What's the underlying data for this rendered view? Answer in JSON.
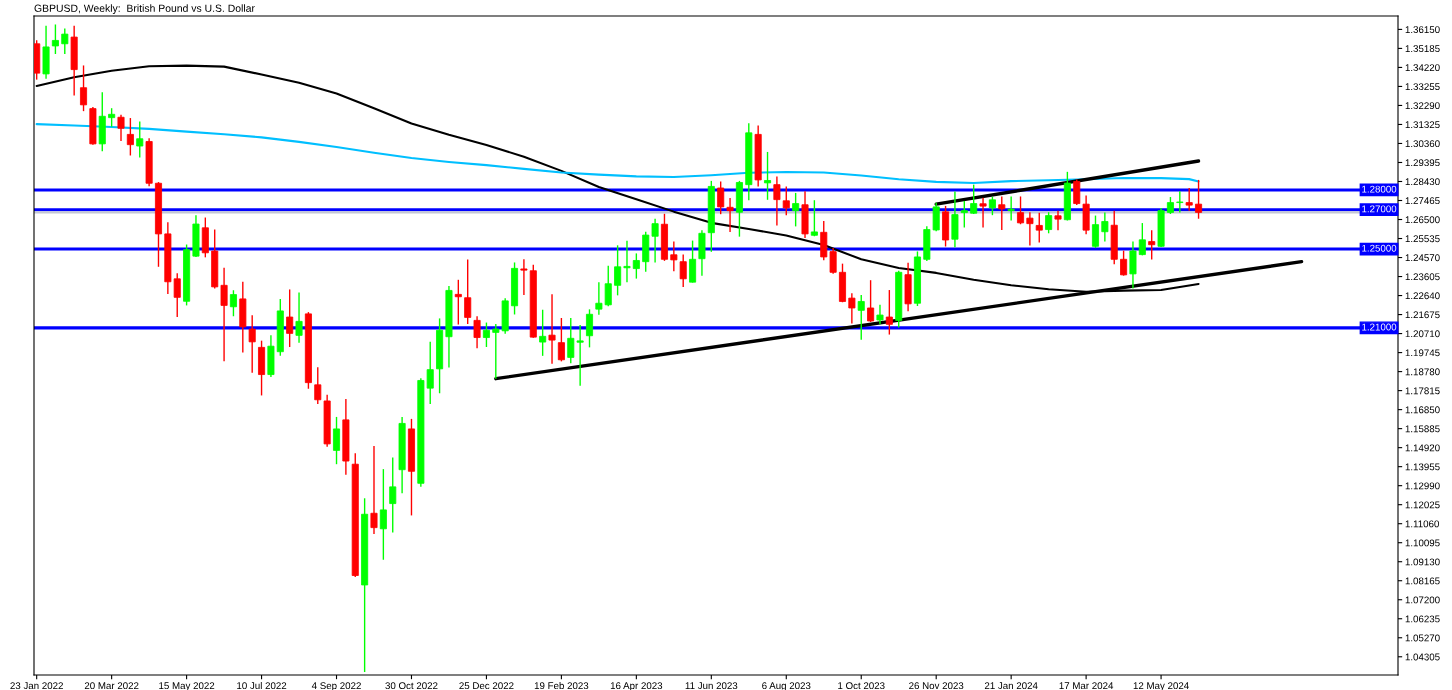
{
  "chart_data": {
    "type": "candlestick",
    "title": "GBPUSD, Weekly:  British Pound vs U.S. Dollar",
    "series": [
      {
        "x": [
          "2022-01-23",
          "2022-01-30",
          "2022-02-06",
          "2022-02-13",
          "2022-02-20",
          "2022-02-27",
          "2022-03-06",
          "2022-03-13",
          "2022-03-20",
          "2022-03-27",
          "2022-04-03",
          "2022-04-10",
          "2022-04-17",
          "2022-04-24",
          "2022-05-01",
          "2022-05-08",
          "2022-05-15",
          "2022-05-22",
          "2022-05-29",
          "2022-06-05",
          "2022-06-12",
          "2022-06-19",
          "2022-06-26",
          "2022-07-03",
          "2022-07-10",
          "2022-07-17",
          "2022-07-24",
          "2022-07-31",
          "2022-08-07",
          "2022-08-14",
          "2022-08-21",
          "2022-08-28",
          "2022-09-04",
          "2022-09-11",
          "2022-09-18",
          "2022-09-25",
          "2022-10-02",
          "2022-10-09",
          "2022-10-16",
          "2022-10-23",
          "2022-10-30",
          "2022-11-06",
          "2022-11-13",
          "2022-11-20",
          "2022-11-27",
          "2022-12-04",
          "2022-12-11",
          "2022-12-18",
          "2022-12-25",
          "2023-01-01",
          "2023-01-08",
          "2023-01-15",
          "2023-01-22",
          "2023-01-29",
          "2023-02-05",
          "2023-02-12",
          "2023-02-19",
          "2023-02-26",
          "2023-03-05",
          "2023-03-12",
          "2023-03-19",
          "2023-03-26",
          "2023-04-02",
          "2023-04-09",
          "2023-04-16",
          "2023-04-23",
          "2023-04-30",
          "2023-05-07",
          "2023-05-14",
          "2023-05-21",
          "2023-05-28",
          "2023-06-04",
          "2023-06-11",
          "2023-06-18",
          "2023-06-25",
          "2023-07-02",
          "2023-07-09",
          "2023-07-16",
          "2023-07-23",
          "2023-07-30",
          "2023-08-06",
          "2023-08-13",
          "2023-08-20",
          "2023-08-27",
          "2023-09-03",
          "2023-09-10",
          "2023-09-17",
          "2023-09-24",
          "2023-10-01",
          "2023-10-08",
          "2023-10-15",
          "2023-10-22",
          "2023-10-29",
          "2023-11-05",
          "2023-11-12",
          "2023-11-19",
          "2023-11-26",
          "2023-12-03",
          "2023-12-10",
          "2023-12-17",
          "2023-12-24",
          "2023-12-31",
          "2024-01-07",
          "2024-01-14",
          "2024-01-21",
          "2024-01-28",
          "2024-02-04",
          "2024-02-11",
          "2024-02-18",
          "2024-02-25",
          "2024-03-03",
          "2024-03-10",
          "2024-03-17",
          "2024-03-24",
          "2024-03-31",
          "2024-04-07",
          "2024-04-14",
          "2024-04-21",
          "2024-04-28",
          "2024-05-05",
          "2024-05-12",
          "2024-05-19",
          "2024-05-26",
          "2024-06-02",
          "2024-06-09"
        ],
        "ohlc": [
          [
            1.3542,
            1.356,
            1.336,
            1.3393
          ],
          [
            1.3389,
            1.3634,
            1.3365,
            1.3526
          ],
          [
            1.3531,
            1.364,
            1.349,
            1.3559
          ],
          [
            1.3542,
            1.362,
            1.349,
            1.3591
          ],
          [
            1.3576,
            1.3634,
            1.3279,
            1.3411
          ],
          [
            1.3319,
            1.3432,
            1.32,
            1.3232
          ],
          [
            1.3213,
            1.3221,
            1.303,
            1.3034
          ],
          [
            1.3034,
            1.3296,
            1.2997,
            1.3174
          ],
          [
            1.3167,
            1.3215,
            1.3121,
            1.3184
          ],
          [
            1.3169,
            1.3182,
            1.3048,
            1.3113
          ],
          [
            1.3082,
            1.3165,
            1.2975,
            1.303
          ],
          [
            1.3023,
            1.3147,
            1.2965,
            1.306
          ],
          [
            1.3046,
            1.3062,
            1.2819,
            1.2834
          ],
          [
            1.2834,
            1.284,
            1.241,
            1.2577
          ],
          [
            1.2577,
            1.2636,
            1.2272,
            1.2334
          ],
          [
            1.2349,
            1.2377,
            1.2155,
            1.2255
          ],
          [
            1.2235,
            1.2523,
            1.2214,
            1.2497
          ],
          [
            1.2464,
            1.2671,
            1.246,
            1.2627
          ],
          [
            1.2608,
            1.266,
            1.2458,
            1.2481
          ],
          [
            1.249,
            1.2599,
            1.23,
            1.2308
          ],
          [
            1.2316,
            1.2405,
            1.1931,
            1.2214
          ],
          [
            1.2207,
            1.2291,
            1.2159,
            1.2269
          ],
          [
            1.2247,
            1.2334,
            1.1975,
            1.2105
          ],
          [
            1.2094,
            1.2164,
            1.1872,
            1.2029
          ],
          [
            1.2001,
            1.2035,
            1.1757,
            1.1863
          ],
          [
            1.1863,
            1.2062,
            1.185,
            1.2007
          ],
          [
            1.1979,
            1.2247,
            1.1959,
            1.2186
          ],
          [
            1.2155,
            1.2295,
            1.2003,
            1.2072
          ],
          [
            1.2062,
            1.228,
            1.2024,
            1.2133
          ],
          [
            1.2171,
            1.218,
            1.1791,
            1.1822
          ],
          [
            1.1811,
            1.19,
            1.1713,
            1.1735
          ],
          [
            1.1729,
            1.1761,
            1.1496,
            1.1511
          ],
          [
            1.1478,
            1.1648,
            1.1408,
            1.1587
          ],
          [
            1.1633,
            1.1739,
            1.1354,
            1.1424
          ],
          [
            1.1408,
            1.1463,
            1.0836,
            1.0843
          ],
          [
            1.0795,
            1.1235,
            1.0353,
            1.1154
          ],
          [
            1.1159,
            1.15,
            1.1054,
            1.1086
          ],
          [
            1.108,
            1.1383,
            1.0923,
            1.1176
          ],
          [
            1.1208,
            1.1442,
            1.1061,
            1.1293
          ],
          [
            1.138,
            1.1648,
            1.1261,
            1.1615
          ],
          [
            1.1587,
            1.1638,
            1.1148,
            1.1372
          ],
          [
            1.1311,
            1.1844,
            1.1293,
            1.1833
          ],
          [
            1.1794,
            1.2029,
            1.1713,
            1.1888
          ],
          [
            1.1892,
            1.2148,
            1.1768,
            1.2088
          ],
          [
            1.2055,
            1.2312,
            1.1899,
            1.229
          ],
          [
            1.227,
            1.2344,
            1.2117,
            1.2258
          ],
          [
            1.2253,
            1.2447,
            1.212,
            1.2153
          ],
          [
            1.2138,
            1.2159,
            1.1996,
            1.2051
          ],
          [
            1.2051,
            1.2127,
            1.2003,
            1.2088
          ],
          [
            1.2077,
            1.2119,
            1.1842,
            1.2094
          ],
          [
            1.2085,
            1.225,
            1.207,
            1.2237
          ],
          [
            1.2212,
            1.2432,
            1.2168,
            1.2402
          ],
          [
            1.2399,
            1.2448,
            1.2267,
            1.2393
          ],
          [
            1.239,
            1.242,
            1.205,
            1.2053
          ],
          [
            1.2028,
            1.2192,
            1.1958,
            1.2057
          ],
          [
            1.2063,
            1.2271,
            1.1918,
            1.2038
          ],
          [
            1.2025,
            1.215,
            1.193,
            1.1938
          ],
          [
            1.195,
            1.215,
            1.192,
            1.2047
          ],
          [
            1.2027,
            1.2115,
            1.1806,
            1.2034
          ],
          [
            1.206,
            1.2194,
            1.2001,
            1.2169
          ],
          [
            1.2195,
            1.2332,
            1.2167,
            1.2225
          ],
          [
            1.2217,
            1.2415,
            1.221,
            1.2324
          ],
          [
            1.2316,
            1.2519,
            1.2265,
            1.241
          ],
          [
            1.2405,
            1.2542,
            1.2332,
            1.2412
          ],
          [
            1.2401,
            1.2478,
            1.235,
            1.2442
          ],
          [
            1.2436,
            1.2588,
            1.2385,
            1.2571
          ],
          [
            1.2565,
            1.2654,
            1.2432,
            1.2629
          ],
          [
            1.2626,
            1.2679,
            1.244,
            1.2448
          ],
          [
            1.2471,
            1.2539,
            1.2387,
            1.2445
          ],
          [
            1.2436,
            1.2473,
            1.2308,
            1.2349
          ],
          [
            1.2332,
            1.2543,
            1.233,
            1.2448
          ],
          [
            1.2451,
            1.2596,
            1.2365,
            1.258
          ],
          [
            1.2583,
            1.2846,
            1.2486,
            1.2818
          ],
          [
            1.281,
            1.2843,
            1.2677,
            1.2714
          ],
          [
            1.2712,
            1.2759,
            1.2586,
            1.2695
          ],
          [
            1.2687,
            1.2846,
            1.2563,
            1.2838
          ],
          [
            1.2827,
            1.3139,
            1.2748,
            1.309
          ],
          [
            1.3082,
            1.3127,
            1.2818,
            1.2851
          ],
          [
            1.2836,
            1.2993,
            1.275,
            1.2848
          ],
          [
            1.2827,
            1.2868,
            1.262,
            1.2751
          ],
          [
            1.2745,
            1.2818,
            1.2672,
            1.2709
          ],
          [
            1.2695,
            1.2785,
            1.2615,
            1.2731
          ],
          [
            1.2725,
            1.2794,
            1.2556,
            1.2577
          ],
          [
            1.257,
            1.2748,
            1.2565,
            1.2587
          ],
          [
            1.2585,
            1.2642,
            1.2443,
            1.246
          ],
          [
            1.2487,
            1.2505,
            1.2375,
            1.2382
          ],
          [
            1.2382,
            1.2426,
            1.223,
            1.2234
          ],
          [
            1.2251,
            1.2276,
            1.2122,
            1.2201
          ],
          [
            1.2189,
            1.2267,
            1.204,
            1.2234
          ],
          [
            1.2201,
            1.2342,
            1.213,
            1.2135
          ],
          [
            1.214,
            1.2217,
            1.2118,
            1.2165
          ],
          [
            1.2155,
            1.2292,
            1.2066,
            1.2118
          ],
          [
            1.2138,
            1.239,
            1.2102,
            1.2382
          ],
          [
            1.237,
            1.2431,
            1.2184,
            1.2222
          ],
          [
            1.2225,
            1.2488,
            1.2211,
            1.246
          ],
          [
            1.2448,
            1.2616,
            1.244,
            1.2599
          ],
          [
            1.2597,
            1.2735,
            1.259,
            1.2714
          ],
          [
            1.2689,
            1.2719,
            1.2513,
            1.2546
          ],
          [
            1.255,
            1.2792,
            1.2509,
            1.2675
          ],
          [
            1.2685,
            1.2744,
            1.2609,
            1.2695
          ],
          [
            1.2682,
            1.2827,
            1.2678,
            1.2731
          ],
          [
            1.273,
            1.276,
            1.2609,
            1.2718
          ],
          [
            1.2709,
            1.2765,
            1.2672,
            1.275
          ],
          [
            1.2725,
            1.2767,
            1.2597,
            1.2704
          ],
          [
            1.2695,
            1.2767,
            1.2645,
            1.2702
          ],
          [
            1.2685,
            1.2767,
            1.2626,
            1.2633
          ],
          [
            1.2657,
            1.2687,
            1.2518,
            1.2629
          ],
          [
            1.262,
            1.2684,
            1.2533,
            1.2596
          ],
          [
            1.2599,
            1.2687,
            1.258,
            1.267
          ],
          [
            1.2669,
            1.2695,
            1.2596,
            1.2652
          ],
          [
            1.2649,
            1.2892,
            1.2645,
            1.2835
          ],
          [
            1.2843,
            1.2853,
            1.2724,
            1.2731
          ],
          [
            1.2728,
            1.2772,
            1.2575,
            1.2596
          ],
          [
            1.2514,
            1.267,
            1.2506,
            1.2624
          ],
          [
            1.2588,
            1.2686,
            1.2538,
            1.264
          ],
          [
            1.2621,
            1.2695,
            1.2423,
            1.2448
          ],
          [
            1.2448,
            1.2492,
            1.2365,
            1.2369
          ],
          [
            1.2374,
            1.2538,
            1.23,
            1.249
          ],
          [
            1.2472,
            1.2632,
            1.2468,
            1.2547
          ],
          [
            1.2538,
            1.2596,
            1.2447,
            1.2522
          ],
          [
            1.2514,
            1.2708,
            1.251,
            1.2695
          ],
          [
            1.2686,
            1.2764,
            1.2678,
            1.2736
          ],
          [
            1.2736,
            1.2794,
            1.2686,
            1.2739
          ],
          [
            1.2736,
            1.281,
            1.2695,
            1.2723
          ],
          [
            1.2728,
            1.2851,
            1.2654,
            1.2686
          ]
        ],
        "colors": [
          "#ff0000",
          "#00ff00",
          "#00ff00",
          "#00ff00",
          "#ff0000",
          "#ff0000",
          "#ff0000",
          "#00ff00",
          "#00ff00",
          "#ff0000",
          "#ff0000",
          "#00ff00",
          "#ff0000",
          "#ff0000",
          "#ff0000",
          "#ff0000",
          "#00ff00",
          "#00ff00",
          "#ff0000",
          "#ff0000",
          "#ff0000",
          "#00ff00",
          "#ff0000",
          "#ff0000",
          "#ff0000",
          "#00ff00",
          "#00ff00",
          "#ff0000",
          "#00ff00",
          "#ff0000",
          "#ff0000",
          "#ff0000",
          "#00ff00",
          "#ff0000",
          "#ff0000",
          "#00ff00",
          "#ff0000",
          "#00ff00",
          "#00ff00",
          "#00ff00",
          "#ff0000",
          "#00ff00",
          "#00ff00",
          "#00ff00",
          "#00ff00",
          "#ff0000",
          "#ff0000",
          "#ff0000",
          "#00ff00",
          "#00ff00",
          "#00ff00",
          "#00ff00",
          "#ff0000",
          "#ff0000",
          "#00ff00",
          "#ff0000",
          "#ff0000",
          "#00ff00",
          "#00ff00",
          "#00ff00",
          "#00ff00",
          "#00ff00",
          "#00ff00",
          "#00ff00",
          "#00ff00",
          "#00ff00",
          "#00ff00",
          "#ff0000",
          "#ff0000",
          "#ff0000",
          "#00ff00",
          "#00ff00",
          "#00ff00",
          "#ff0000",
          "#ff0000",
          "#00ff00",
          "#00ff00",
          "#ff0000",
          "#00ff00",
          "#ff0000",
          "#ff0000",
          "#00ff00",
          "#ff0000",
          "#00ff00",
          "#ff0000",
          "#ff0000",
          "#ff0000",
          "#ff0000",
          "#00ff00",
          "#ff0000",
          "#00ff00",
          "#ff0000",
          "#00ff00",
          "#ff0000",
          "#00ff00",
          "#00ff00",
          "#00ff00",
          "#ff0000",
          "#00ff00",
          "#00ff00",
          "#00ff00",
          "#ff0000",
          "#00ff00",
          "#ff0000",
          "#00ff00",
          "#ff0000",
          "#ff0000",
          "#ff0000",
          "#00ff00",
          "#ff0000",
          "#00ff00",
          "#ff0000",
          "#ff0000",
          "#00ff00",
          "#00ff00",
          "#ff0000",
          "#ff0000",
          "#00ff00",
          "#00ff00",
          "#ff0000",
          "#00ff00",
          "#00ff00",
          "#00ff00",
          "#ff0000",
          "#ff0000"
        ]
      },
      {
        "type": "line",
        "color": "#000000",
        "x": [
          "2022-01-23",
          "2022-02-20",
          "2022-03-20",
          "2022-04-17",
          "2022-05-15",
          "2022-06-12",
          "2022-07-10",
          "2022-08-07",
          "2022-09-04",
          "2022-10-02",
          "2022-10-30",
          "2022-11-27",
          "2022-12-25",
          "2023-01-22",
          "2023-02-19",
          "2023-03-19",
          "2023-04-16",
          "2023-05-14",
          "2023-06-11",
          "2023-07-09",
          "2023-08-06",
          "2023-09-03",
          "2023-10-01",
          "2023-10-29",
          "2023-11-26",
          "2023-12-24",
          "2024-01-21",
          "2024-02-18",
          "2024-03-17",
          "2024-04-14",
          "2024-05-12",
          "2024-06-09"
        ],
        "values": [
          1.3328,
          1.3372,
          1.3405,
          1.3428,
          1.3431,
          1.3426,
          1.3386,
          1.3344,
          1.329,
          1.3215,
          1.3137,
          1.308,
          1.3028,
          1.2969,
          1.2897,
          1.2815,
          1.2753,
          1.269,
          1.2633,
          1.2602,
          1.2569,
          1.2521,
          1.2448,
          1.2404,
          1.2379,
          1.2344,
          1.2316,
          1.2296,
          1.2283,
          1.2289,
          1.2292,
          1.2323
        ]
      },
      {
        "type": "line",
        "color": "#00bfff",
        "x": [
          "2022-01-23",
          "2022-02-20",
          "2022-03-20",
          "2022-04-17",
          "2022-05-15",
          "2022-06-12",
          "2022-07-10",
          "2022-08-07",
          "2022-09-04",
          "2022-10-02",
          "2022-10-30",
          "2022-11-27",
          "2022-12-25",
          "2023-01-22",
          "2023-02-19",
          "2023-03-19",
          "2023-04-16",
          "2023-05-14",
          "2023-06-11",
          "2023-07-09",
          "2023-08-06",
          "2023-09-03",
          "2023-10-01",
          "2023-10-29",
          "2023-11-26",
          "2023-12-24",
          "2024-01-21",
          "2024-02-18",
          "2024-03-17",
          "2024-04-14",
          "2024-05-12",
          "2024-06-02",
          "2024-06-09"
        ],
        "values": [
          1.3134,
          1.3127,
          1.312,
          1.311,
          1.3096,
          1.3083,
          1.3067,
          1.3044,
          1.3018,
          1.2989,
          1.2962,
          1.2942,
          1.2926,
          1.2907,
          1.2889,
          1.2878,
          1.2869,
          1.2866,
          1.2875,
          1.2887,
          1.2891,
          1.2889,
          1.2873,
          1.2854,
          1.2841,
          1.2835,
          1.2845,
          1.2849,
          1.2854,
          1.2861,
          1.286,
          1.2855,
          1.2843
        ]
      },
      {
        "type": "line",
        "color": "#000000",
        "x": [
          "2023-01-01",
          "2024-08-25"
        ],
        "values": [
          1.1842,
          1.2436
        ]
      },
      {
        "type": "line",
        "color": "#000000",
        "x": [
          "2023-11-26",
          "2024-06-09"
        ],
        "values": [
          1.2728,
          1.2947
        ]
      }
    ],
    "xlim": [
      "2022-01-21",
      "2024-11-05"
    ],
    "xticks": [
      {
        "value": "2022-01-23",
        "label": "23 Jan 2022"
      },
      {
        "value": "2022-03-20",
        "label": "20 Mar 2022"
      },
      {
        "value": "2022-05-15",
        "label": "15 May 2022"
      },
      {
        "value": "2022-07-10",
        "label": "10 Jul 2022"
      },
      {
        "value": "2022-09-04",
        "label": "4 Sep 2022"
      },
      {
        "value": "2022-10-30",
        "label": "30 Oct 2022"
      },
      {
        "value": "2022-12-25",
        "label": "25 Dec 2022"
      },
      {
        "value": "2023-02-19",
        "label": "19 Feb 2023"
      },
      {
        "value": "2023-04-16",
        "label": "16 Apr 2023"
      },
      {
        "value": "2023-06-11",
        "label": "11 Jun 2023"
      },
      {
        "value": "2023-08-06",
        "label": "6 Aug 2023"
      },
      {
        "value": "2023-10-01",
        "label": "1 Oct 2023"
      },
      {
        "value": "2023-11-26",
        "label": "26 Nov 2023"
      },
      {
        "value": "2024-01-21",
        "label": "21 Jan 2024"
      },
      {
        "value": "2024-03-17",
        "label": "17 Mar 2024"
      },
      {
        "value": "2024-05-12",
        "label": "12 May 2024"
      }
    ],
    "ylim": [
      1.0338,
      1.3683
    ],
    "yticks": [
      {
        "value": 1.3615,
        "label": "1.36150"
      },
      {
        "value": 1.35185,
        "label": "1.35185"
      },
      {
        "value": 1.3422,
        "label": "1.34220"
      },
      {
        "value": 1.33255,
        "label": "1.33255"
      },
      {
        "value": 1.3229,
        "label": "1.32290"
      },
      {
        "value": 1.31325,
        "label": "1.31325"
      },
      {
        "value": 1.3036,
        "label": "1.30360"
      },
      {
        "value": 1.29395,
        "label": "1.29395"
      },
      {
        "value": 1.2843,
        "label": "1.28430"
      },
      {
        "value": 1.27465,
        "label": "1.27465"
      },
      {
        "value": 1.265,
        "label": "1.26500"
      },
      {
        "value": 1.25535,
        "label": "1.25535"
      },
      {
        "value": 1.2457,
        "label": "1.24570"
      },
      {
        "value": 1.23605,
        "label": "1.23605"
      },
      {
        "value": 1.2264,
        "label": "1.22640"
      },
      {
        "value": 1.21675,
        "label": "1.21675"
      },
      {
        "value": 1.2071,
        "label": "1.20710"
      },
      {
        "value": 1.19745,
        "label": "1.19745"
      },
      {
        "value": 1.1878,
        "label": "1.18780"
      },
      {
        "value": 1.17815,
        "label": "1.17815"
      },
      {
        "value": 1.1685,
        "label": "1.16850"
      },
      {
        "value": 1.15885,
        "label": "1.15885"
      },
      {
        "value": 1.1492,
        "label": "1.14920"
      },
      {
        "value": 1.13955,
        "label": "1.13955"
      },
      {
        "value": 1.1299,
        "label": "1.12990"
      },
      {
        "value": 1.12025,
        "label": "1.12025"
      },
      {
        "value": 1.1106,
        "label": "1.11060"
      },
      {
        "value": 1.10095,
        "label": "1.10095"
      },
      {
        "value": 1.0913,
        "label": "1.09130"
      },
      {
        "value": 1.08165,
        "label": "1.08165"
      },
      {
        "value": 1.072,
        "label": "1.07200"
      },
      {
        "value": 1.06235,
        "label": "1.06235"
      },
      {
        "value": 1.0527,
        "label": "1.05270"
      },
      {
        "value": 1.04305,
        "label": "1.04305"
      }
    ],
    "ref_lines": [
      {
        "axis": "y",
        "value": 1.28,
        "label": "1.28000",
        "color": "#0000ff"
      },
      {
        "axis": "y",
        "value": 1.27,
        "label": "1.27000",
        "color": "#0000ff"
      },
      {
        "axis": "y",
        "value": 1.25,
        "label": "1.25000",
        "color": "#0000ff"
      },
      {
        "axis": "y",
        "value": 1.21,
        "label": "1.21000",
        "color": "#0000ff"
      },
      {
        "axis": "y",
        "value": 1.2686,
        "color": "#c4c8d4"
      }
    ]
  }
}
